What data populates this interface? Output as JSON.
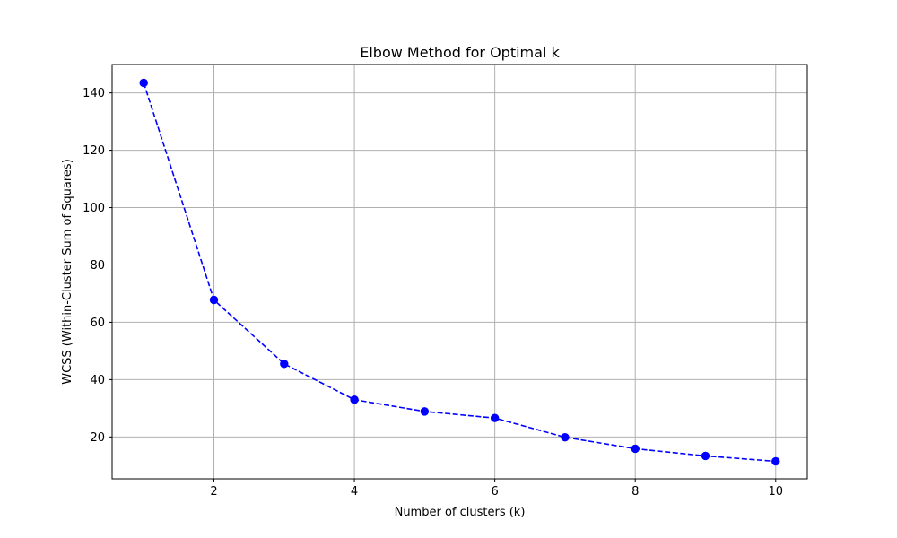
{
  "chart_data": {
    "type": "line",
    "title": "Elbow Method for Optimal k",
    "xlabel": "Number of clusters (k)",
    "ylabel": "WCSS (Within-Cluster Sum of Squares)",
    "x": [
      1,
      2,
      3,
      4,
      5,
      6,
      7,
      8,
      9,
      10
    ],
    "series": [
      {
        "values": [
          143.5,
          67.8,
          45.5,
          33.0,
          28.9,
          26.6,
          19.9,
          15.9,
          13.4,
          11.5
        ]
      }
    ],
    "xlim": [
      0.55,
      10.45
    ],
    "ylim": [
      5.4,
      149.9
    ],
    "xticks": [
      2,
      4,
      6,
      8,
      10
    ],
    "yticks": [
      20,
      40,
      60,
      80,
      100,
      120,
      140
    ],
    "grid": true,
    "line_style": "dashed",
    "marker": "circle",
    "colors": {
      "series": "#0000ff",
      "grid": "#b0b0b0",
      "axes": "#000000"
    }
  }
}
